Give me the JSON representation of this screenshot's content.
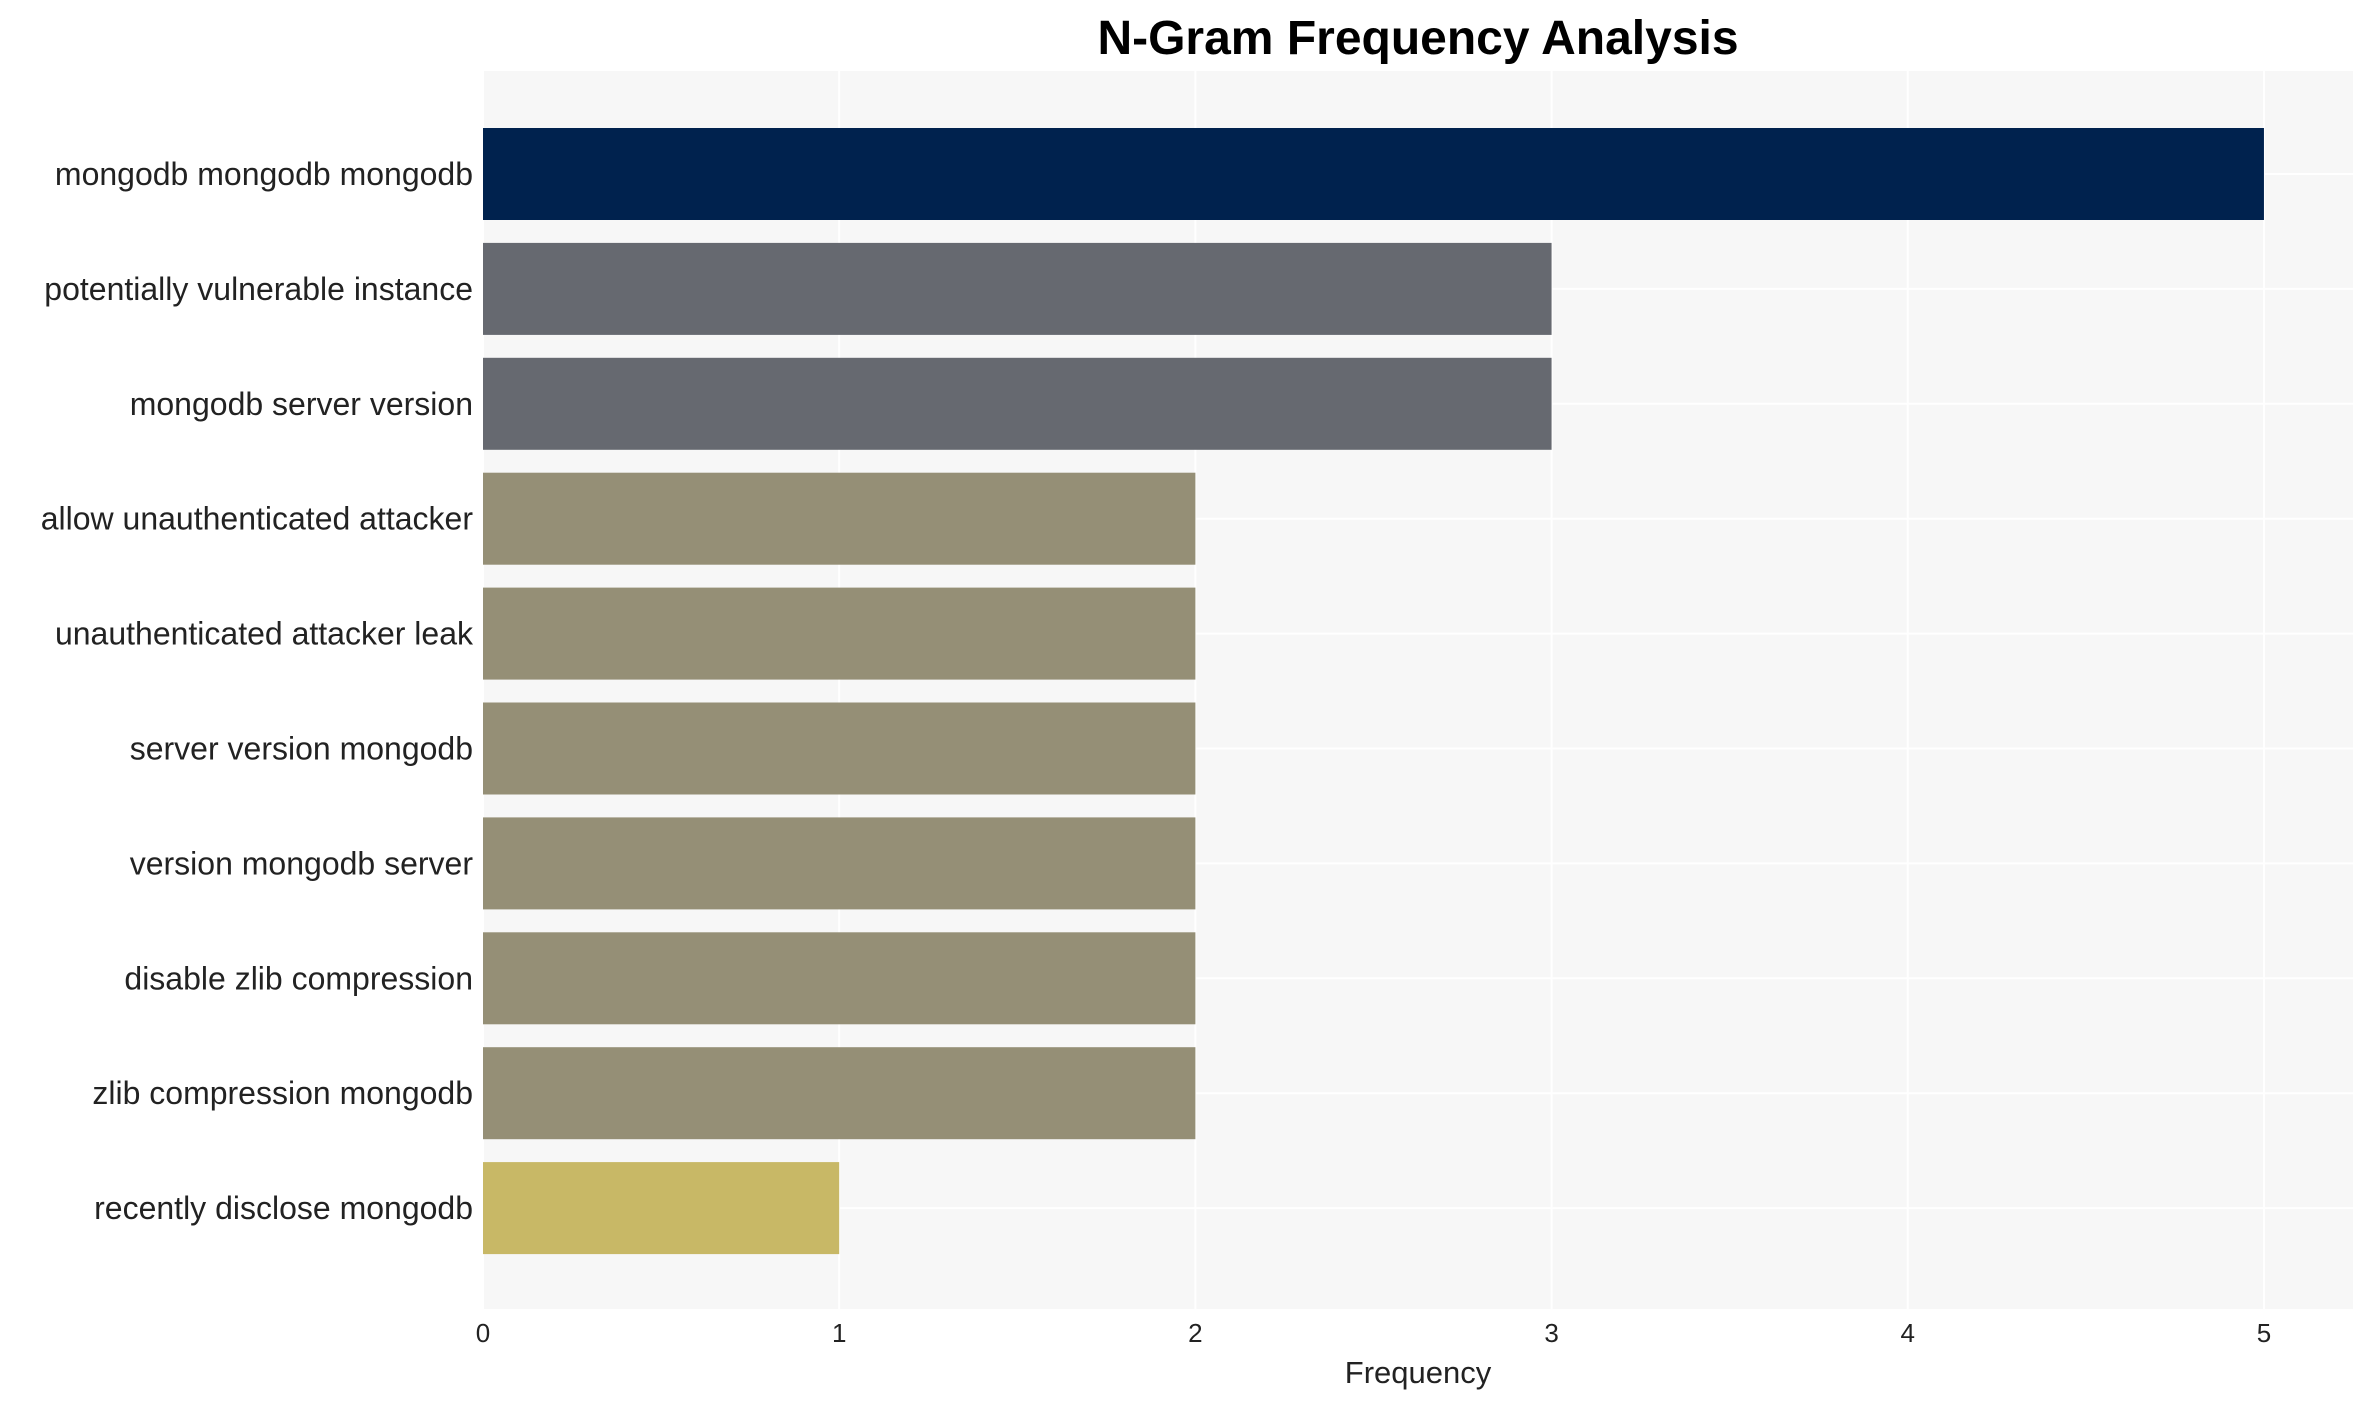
{
  "chart_data": {
    "type": "bar",
    "orientation": "horizontal",
    "title": "N-Gram Frequency Analysis",
    "xlabel": "Frequency",
    "ylabel": "",
    "xlim": [
      0,
      5.25
    ],
    "xticks": [
      "0",
      "1",
      "2",
      "3",
      "4",
      "5"
    ],
    "grid": true,
    "categories": [
      "mongodb mongodb mongodb",
      "potentially vulnerable instance",
      "mongodb server version",
      "allow unauthenticated attacker",
      "unauthenticated attacker leak",
      "server version mongodb",
      "version mongodb server",
      "disable zlib compression",
      "zlib compression mongodb",
      "recently disclose mongodb"
    ],
    "values": [
      5,
      3,
      3,
      2,
      2,
      2,
      2,
      2,
      2,
      1
    ],
    "colors": {
      "5": "#00224e",
      "3": "#666970",
      "2": "#958f76",
      "1": "#c8b866"
    },
    "plot_background": "#f7f7f7"
  }
}
